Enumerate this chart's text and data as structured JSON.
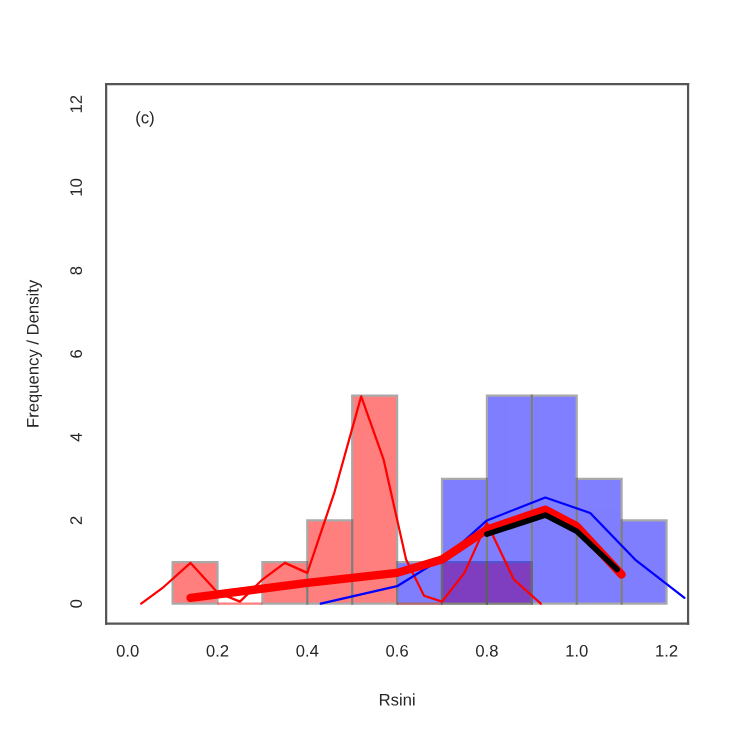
{
  "chart_data": {
    "type": "histogram",
    "xlabel": "Rsini",
    "ylabel": "Frequency / Density",
    "annotations": [
      "(c)"
    ],
    "xlim": [
      -0.048,
      1.248
    ],
    "ylim": [
      -0.48,
      12.48
    ],
    "xticks": [
      {
        "value": 0,
        "label": "0.0"
      },
      0.2,
      0.4,
      0.6,
      0.8,
      {
        "value": 1,
        "label": "1.0"
      },
      1.2
    ],
    "yticks": [
      0,
      2,
      4,
      6,
      8,
      10,
      12
    ],
    "grid": false,
    "legend": false,
    "series": [
      {
        "color": "#ff0000",
        "bins": [
          0.1,
          0.2,
          0.3,
          0.4,
          0.5,
          0.6,
          0.7,
          0.8,
          0.9
        ],
        "values": [
          1,
          0,
          1,
          2,
          5,
          0,
          1,
          1
        ]
      },
      {
        "color": "#0000ff",
        "bins": [
          0.6,
          0.7,
          0.8,
          0.9,
          1.0,
          1.1,
          1.2
        ],
        "values": [
          1,
          3,
          5,
          5,
          3,
          2
        ]
      },
      {
        "type": "line",
        "color": "#ff0000",
        "x": [
          0.03,
          0.08,
          0.14,
          0.2,
          0.25,
          0.3,
          0.35,
          0.4,
          0.46,
          0.52,
          0.57,
          0.62,
          0.66,
          0.7,
          0.75,
          0.8,
          0.86,
          0.92
        ],
        "values": [
          0,
          0.4,
          0.98,
          0.27,
          0.05,
          0.58,
          0.98,
          0.74,
          2.66,
          4.98,
          3.46,
          1.06,
          0.19,
          0.05,
          0.74,
          1.94,
          0.58,
          0
        ]
      },
      {
        "type": "line",
        "color": "#0000ff",
        "x": [
          0.43,
          0.6,
          0.72,
          0.8,
          0.93,
          1.03,
          1.13,
          1.24
        ],
        "values": [
          0,
          0.42,
          1.22,
          2.0,
          2.55,
          2.18,
          1.06,
          0.14
        ]
      },
      {
        "type": "line",
        "color": "#ff0000",
        "x": [
          0.14,
          0.4,
          0.6,
          0.7,
          0.8,
          0.93,
          1.0,
          1.1
        ],
        "values": [
          0.14,
          0.5,
          0.74,
          1.06,
          1.78,
          2.26,
          1.86,
          0.7
        ]
      },
      {
        "type": "line",
        "color": "#000000",
        "x": [
          0.8,
          0.93,
          1.0,
          1.09
        ],
        "values": [
          1.67,
          2.13,
          1.74,
          0.82
        ]
      }
    ]
  }
}
